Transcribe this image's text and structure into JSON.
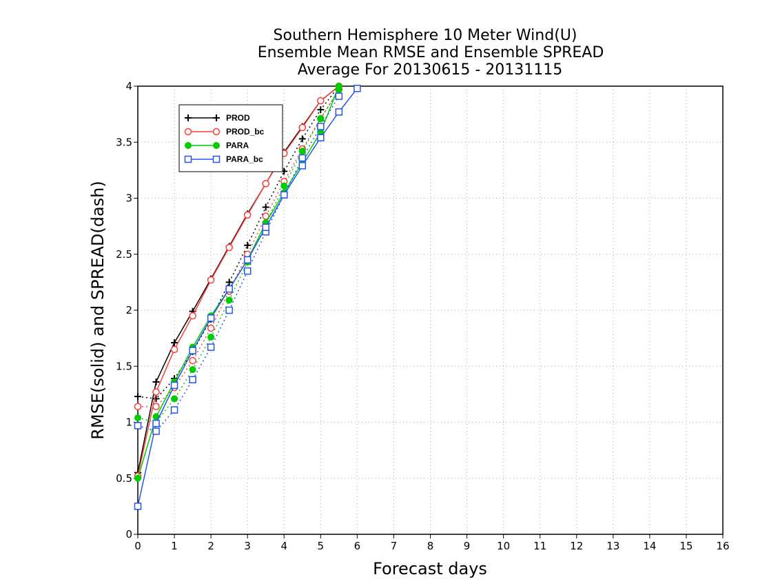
{
  "chart_data": {
    "type": "line",
    "title_lines": [
      "Southern Hemisphere 10 Meter Wind(U)",
      "Ensemble Mean RMSE and Ensemble SPREAD",
      "Average For 20130615 - 20131115"
    ],
    "xlabel": "Forecast days",
    "ylabel": "RMSE(solid) and SPREAD(dash)",
    "xlim": [
      0,
      16
    ],
    "ylim": [
      0,
      4
    ],
    "xticks": [
      "0",
      "1",
      "2",
      "3",
      "4",
      "5",
      "6",
      "7",
      "8",
      "9",
      "10",
      "11",
      "12",
      "13",
      "14",
      "15",
      "16"
    ],
    "yticks": [
      "0",
      "0.5",
      "1",
      "1.5",
      "2",
      "2.5",
      "3",
      "3.5",
      "4"
    ],
    "grid": true,
    "legend_position": "top-left",
    "series": [
      {
        "name": "PROD",
        "color": "#000000",
        "marker": "plus",
        "rmse": {
          "x": [
            0,
            0.5,
            1,
            1.5,
            2,
            2.5,
            3,
            3.5,
            4,
            4.5,
            5,
            5.5
          ],
          "y": [
            0.55,
            1.36,
            1.71,
            1.99,
            2.28,
            2.57,
            2.86,
            3.13,
            3.41,
            3.64,
            3.87,
            4.0
          ]
        },
        "spread": {
          "x": [
            0,
            0.5,
            1,
            1.5,
            2,
            2.5,
            3,
            3.5,
            4,
            4.5,
            5,
            5.5
          ],
          "y": [
            1.23,
            1.21,
            1.39,
            1.63,
            1.92,
            2.25,
            2.58,
            2.92,
            3.24,
            3.53,
            3.79,
            4.0
          ]
        }
      },
      {
        "name": "PROD_bc",
        "color": "#ff3b3b",
        "marker": "open-circle",
        "rmse": {
          "x": [
            0,
            0.5,
            1,
            1.5,
            2,
            2.5,
            3,
            3.5,
            4,
            4.5,
            5,
            5.5
          ],
          "y": [
            0.52,
            1.27,
            1.65,
            1.95,
            2.27,
            2.56,
            2.85,
            3.13,
            3.4,
            3.63,
            3.87,
            4.0
          ]
        },
        "spread": {
          "x": [
            0,
            0.5,
            1,
            1.5,
            2,
            2.5,
            3,
            3.5,
            4,
            4.5,
            5,
            5.5
          ],
          "y": [
            1.14,
            1.14,
            1.31,
            1.55,
            1.84,
            2.17,
            2.5,
            2.84,
            3.15,
            3.44,
            3.71,
            3.97
          ]
        }
      },
      {
        "name": "PARA",
        "color": "#00cc00",
        "marker": "filled-circle",
        "rmse": {
          "x": [
            0,
            0.5,
            1,
            1.5,
            2,
            2.5,
            3,
            3.5,
            4,
            4.5,
            5,
            5.5
          ],
          "y": [
            0.5,
            1.05,
            1.36,
            1.67,
            1.95,
            2.19,
            2.45,
            2.78,
            3.05,
            3.32,
            3.59,
            4.0
          ]
        },
        "spread": {
          "x": [
            0,
            0.5,
            1,
            1.5,
            2,
            2.5,
            3,
            3.5,
            4,
            4.5,
            5,
            5.5
          ],
          "y": [
            1.04,
            1.0,
            1.21,
            1.47,
            1.76,
            2.09,
            2.43,
            2.78,
            3.11,
            3.42,
            3.71,
            3.97
          ]
        }
      },
      {
        "name": "PARA_bc",
        "color": "#2255ee",
        "marker": "open-square",
        "rmse": {
          "x": [
            0,
            0.5,
            1,
            1.5,
            2,
            2.5,
            3,
            3.5,
            4,
            4.5,
            5,
            5.5,
            6
          ],
          "y": [
            0.25,
            0.99,
            1.33,
            1.64,
            1.93,
            2.19,
            2.45,
            2.74,
            3.03,
            3.29,
            3.54,
            3.77,
            3.98
          ]
        },
        "spread": {
          "x": [
            0,
            0.5,
            1,
            1.5,
            2,
            2.5,
            3,
            3.5,
            4,
            4.5,
            5,
            5.5
          ],
          "y": [
            0.97,
            0.92,
            1.11,
            1.38,
            1.67,
            2.0,
            2.35,
            2.7,
            3.03,
            3.36,
            3.64,
            3.91
          ]
        }
      }
    ]
  }
}
